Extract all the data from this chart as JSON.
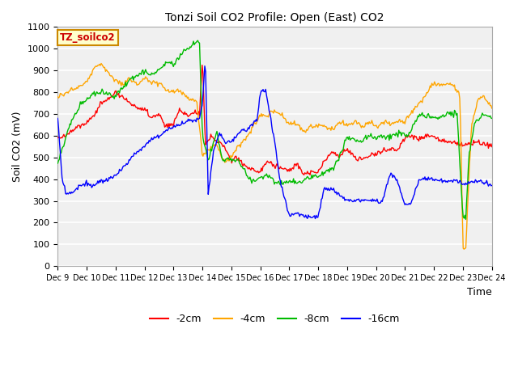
{
  "title": "Tonzi Soil CO2 Profile: Open (East) CO2",
  "ylabel": "Soil CO2 (mV)",
  "xlabel": "Time",
  "box_label": "TZ_soilco2",
  "ylim": [
    0,
    1100
  ],
  "yticks": [
    0,
    100,
    200,
    300,
    400,
    500,
    600,
    700,
    800,
    900,
    1000,
    1100
  ],
  "fig_bg": "#ffffff",
  "plot_bg": "#f0f0f0",
  "grid_color": "#ffffff",
  "colors": {
    "-2cm": "#ff0000",
    "-4cm": "#ffa500",
    "-8cm": "#00bb00",
    "-16cm": "#0000ff"
  },
  "xtick_labels": [
    "Dec 9",
    "Dec 10",
    "Dec 11",
    "Dec 12",
    "Dec 13",
    "Dec 14",
    "Dec 15",
    "Dec 16",
    "Dec 17",
    "Dec 18",
    "Dec 19",
    "Dec 20",
    "Dec 21",
    "Dec 22",
    "Dec 23",
    "Dec 24"
  ],
  "num_days": 16
}
